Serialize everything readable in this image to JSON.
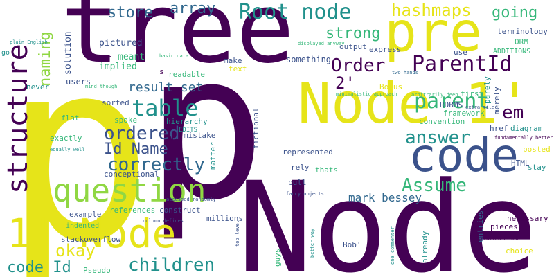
{
  "palette": {
    "dark_purple": "#440154",
    "indigo": "#3b528b",
    "blue": "#31688e",
    "teal": "#21918c",
    "green": "#35b779",
    "lime": "#90d743",
    "yellow": "#e6e419"
  },
  "words": [
    "tree",
    "p",
    "Node",
    "pre",
    "Node 1'",
    "code",
    "structure",
    "question",
    "1' Node",
    "Root node",
    "hashmaps",
    "going",
    "store",
    "array",
    "strong",
    "naming",
    "Order",
    "ParentId",
    "table",
    "parent",
    "2'",
    "em",
    "ordered",
    "correctly",
    "Id Name",
    "result set",
    "answer",
    "Assume",
    "children",
    "code Id",
    "okay",
    "mark bessey",
    "solution",
    "pictured",
    "implied",
    "meant",
    "users",
    "never",
    "something",
    "output",
    "express",
    "use",
    "terminology",
    "ORM",
    "ADDITIONS",
    "go",
    "Bonus",
    "RDBMS",
    "first",
    "merely",
    "purely",
    "framework",
    "convention",
    "HTML",
    "href",
    "diagram",
    "posted",
    "stay",
    "fictional",
    "represented",
    "rely",
    "thats",
    "pull",
    "references",
    "construct",
    "millions",
    "example",
    "conceptional",
    "hierarchy",
    "matter",
    "EDITS",
    "exactly",
    "flat",
    "spoke",
    "sorted",
    "text",
    "make",
    "readable",
    "mistake",
    "indented",
    "stackoverflow",
    "Pseudo",
    "pieces",
    "necessary",
    "choice",
    "entries",
    "already",
    "guys",
    "Bob'",
    "basic data",
    "displayed anyway",
    "two hands",
    "arbitrarily deep",
    "plain English",
    "mind though",
    "minimalistic approach",
    "extra mile",
    "fundamentally better",
    "called Frank'",
    "fancy objects",
    "accessed randomly",
    "equally well",
    "column defines",
    "top level",
    "better way",
    "one commenter",
    "hr",
    "s",
    "N"
  ]
}
